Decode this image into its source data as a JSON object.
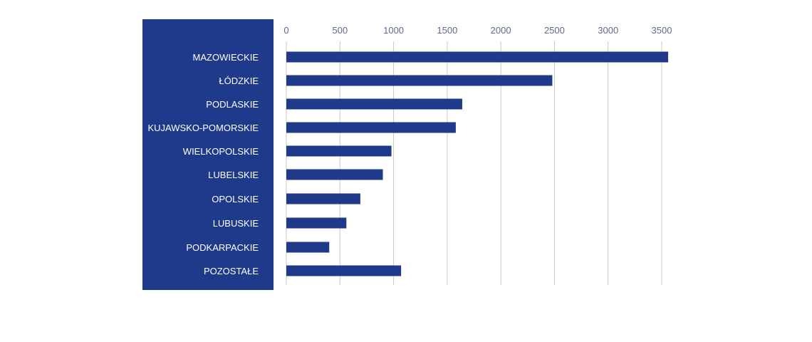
{
  "chart_data": {
    "type": "bar",
    "orientation": "horizontal",
    "categories": [
      "MAZOWIECKIE",
      "ŁÓDZKIE",
      "PODLASKIE",
      "KUJAWSKO-POMORSKIE",
      "WIELKOPOLSKIE",
      "LUBELSKIE",
      "OPOLSKIE",
      "LUBUSKIE",
      "PODKARPACKIE",
      "POZOSTAŁE"
    ],
    "values": [
      3560,
      2480,
      1640,
      1580,
      980,
      900,
      690,
      560,
      400,
      1070
    ],
    "xticks": [
      "0",
      "500",
      "1000",
      "1500",
      "2000",
      "2500",
      "3000",
      "3500"
    ],
    "xlim": [
      0,
      3600
    ],
    "grid": true,
    "legend": "none",
    "colors": {
      "bar": "#1f3a8a",
      "label_panel": "#1f3a8a",
      "grid": "#c8c8c8"
    }
  }
}
